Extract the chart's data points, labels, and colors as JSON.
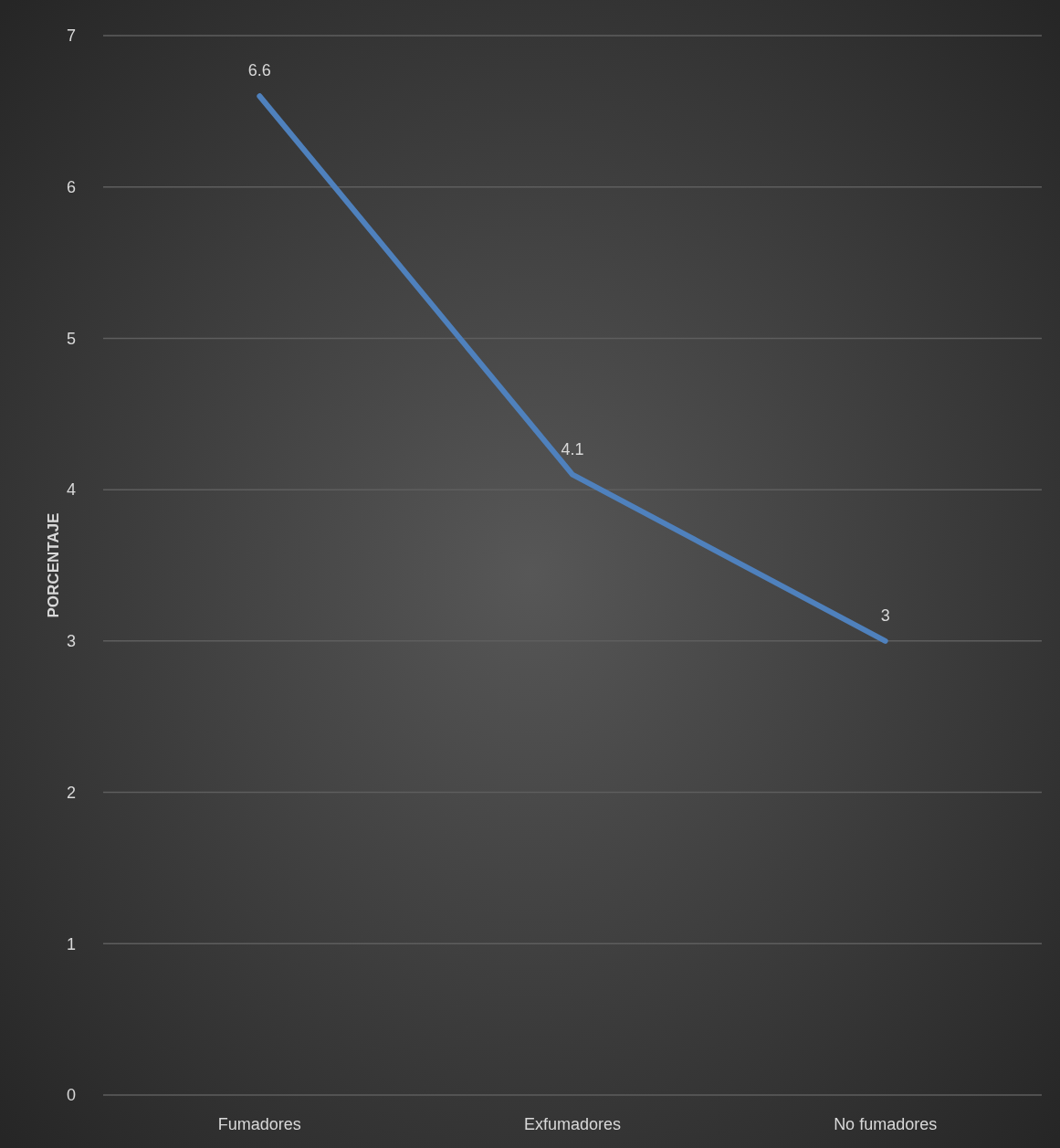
{
  "chart_data": {
    "type": "line",
    "ylabel": "PORCENTAJE",
    "categories": [
      "Fumadores",
      "Exfumadores",
      "No fumadores"
    ],
    "series": [
      {
        "color": "#4f81bd",
        "values": [
          6.6,
          4.1,
          3
        ]
      }
    ],
    "ylim": [
      0,
      7
    ],
    "yticks": [
      0,
      1,
      2,
      3,
      4,
      5,
      6,
      7
    ],
    "grid": "y",
    "data_labels": true,
    "marker": "none",
    "line_style": "solid"
  }
}
